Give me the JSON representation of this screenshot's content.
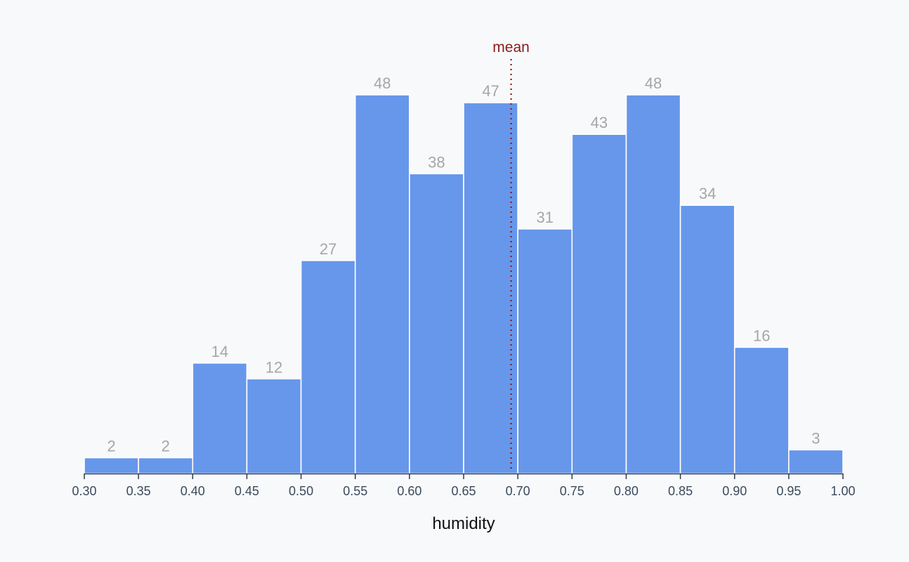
{
  "chart_data": {
    "type": "bar",
    "subtype": "histogram",
    "bin_edges": [
      0.3,
      0.35,
      0.4,
      0.45,
      0.5,
      0.55,
      0.6,
      0.65,
      0.7,
      0.75,
      0.8,
      0.85,
      0.9,
      0.95,
      1.0
    ],
    "values": [
      2,
      2,
      14,
      12,
      27,
      48,
      38,
      47,
      31,
      43,
      48,
      34,
      16,
      3
    ],
    "data_labels": [
      "2",
      "2",
      "14",
      "12",
      "27",
      "48",
      "38",
      "47",
      "31",
      "43",
      "48",
      "34",
      "16",
      "3"
    ],
    "xlabel": "humidity",
    "ylabel": "",
    "xlim": [
      0.3,
      1.0
    ],
    "ylim": [
      0,
      48
    ],
    "x_ticks": [
      "0.30",
      "0.35",
      "0.40",
      "0.45",
      "0.50",
      "0.55",
      "0.60",
      "0.65",
      "0.70",
      "0.75",
      "0.80",
      "0.85",
      "0.90",
      "0.95",
      "1.00"
    ],
    "mean": {
      "label": "mean",
      "value": 0.6938,
      "color": "#8b1a1a",
      "style": "dotted"
    },
    "bar_color": "#6797ea",
    "bar_edge_color": "#ffffff",
    "grid": false,
    "legend": "none"
  }
}
